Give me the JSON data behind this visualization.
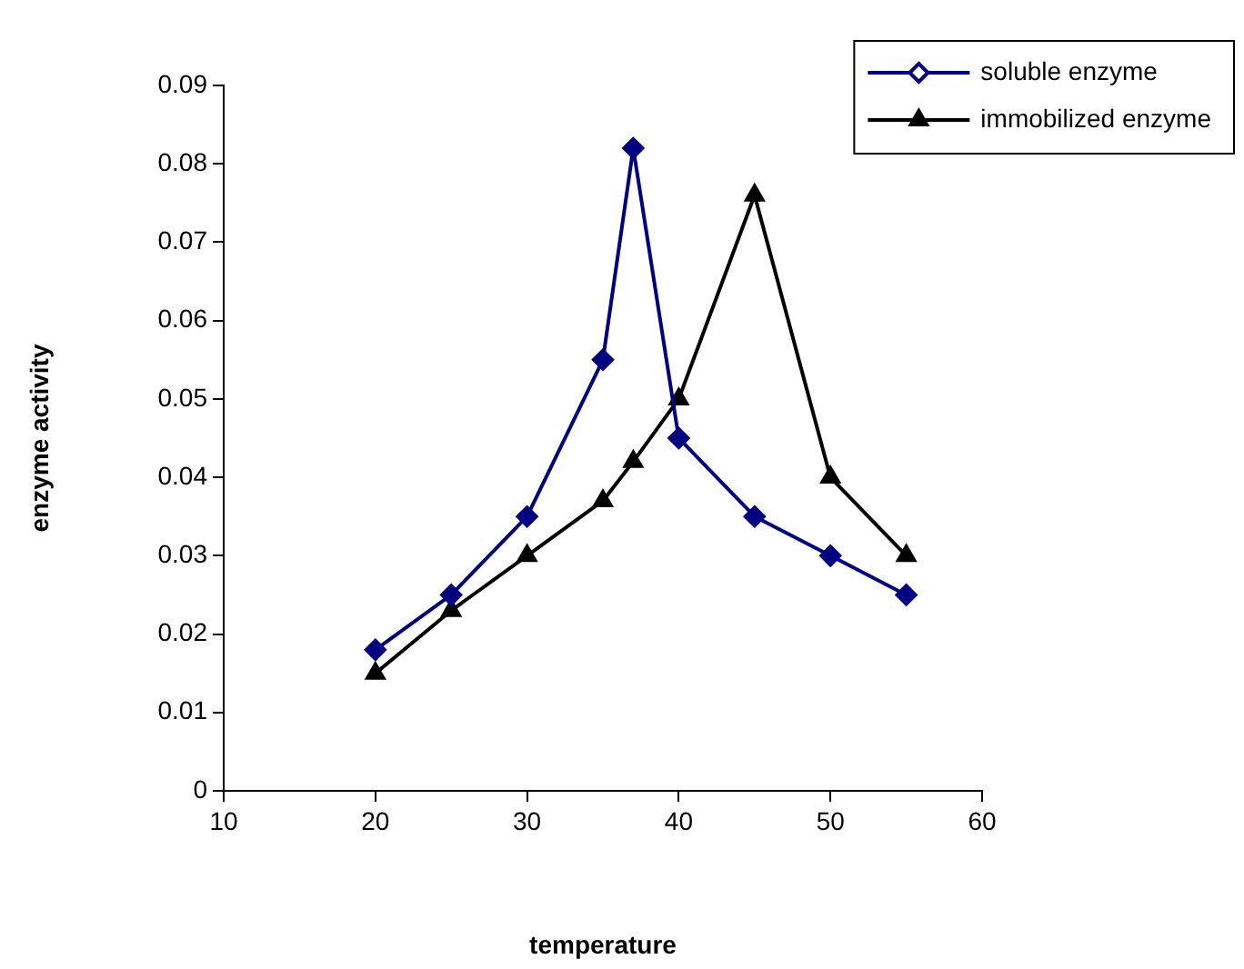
{
  "chart_data": {
    "type": "line",
    "xlabel": "temperature",
    "ylabel": "enzyme activity",
    "xlim": [
      10,
      60
    ],
    "xticks": [
      10,
      20,
      30,
      40,
      50,
      60
    ],
    "ylim": [
      0,
      0.09
    ],
    "yticks": [
      0,
      0.01,
      0.02,
      0.03,
      0.04,
      0.05,
      0.06,
      0.07,
      0.08,
      0.09
    ],
    "grid": false,
    "legend": "top right",
    "line_style": "solid",
    "x": [
      20,
      25,
      30,
      35,
      37,
      40,
      45,
      50,
      55
    ],
    "series": [
      {
        "name": "soluble enzyme",
        "color": "#000080",
        "marker": "diamond",
        "values": [
          0.018,
          0.025,
          0.035,
          0.055,
          0.082,
          0.045,
          0.035,
          0.03,
          0.025
        ]
      },
      {
        "name": "immobilized enzyme",
        "color": "#000000",
        "marker": "triangle",
        "values": [
          0.015,
          0.023,
          0.03,
          0.037,
          0.042,
          0.05,
          0.076,
          0.04,
          0.03
        ]
      }
    ]
  }
}
